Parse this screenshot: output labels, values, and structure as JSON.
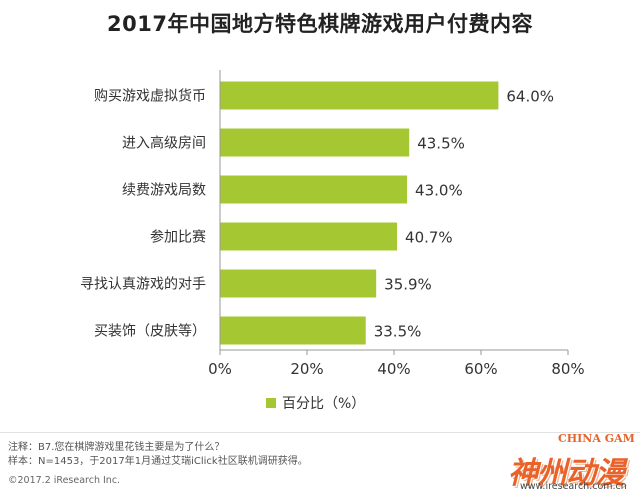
{
  "chart_data": {
    "type": "bar",
    "orientation": "horizontal",
    "title": "2017年中国地方特色棋牌游戏用户付费内容",
    "categories": [
      "购买游戏虚拟货币",
      "进入高级房间",
      "续费游戏局数",
      "参加比赛",
      "寻找认真游戏的对手",
      "买装饰（皮肤等）"
    ],
    "series": [
      {
        "name": "百分比（%）",
        "values": [
          64.0,
          43.5,
          43.0,
          40.7,
          35.9,
          33.5
        ]
      }
    ],
    "value_labels": [
      "64.0%",
      "43.5%",
      "43.0%",
      "40.7%",
      "35.9%",
      "33.5%"
    ],
    "xlim": [
      0,
      80
    ],
    "x_ticks": [
      0,
      20,
      40,
      60,
      80
    ],
    "x_tick_labels": [
      "0%",
      "20%",
      "40%",
      "60%",
      "80%"
    ],
    "grid": false,
    "legend_position": "bottom-center",
    "bar_color": "#a5c832"
  },
  "notes": {
    "line1": "注释：B7.您在棋牌游戏里花钱主要是为了什么？",
    "line2": "样本：N=1453，于2017年1月通过艾瑞iClick社区联机调研获得。"
  },
  "copyright": "©2017.2 iResearch Inc.",
  "watermark": {
    "top_text": "CHINA GAM",
    "logo_text": "神州动漫",
    "url": "www.iresearch.com.cn"
  }
}
